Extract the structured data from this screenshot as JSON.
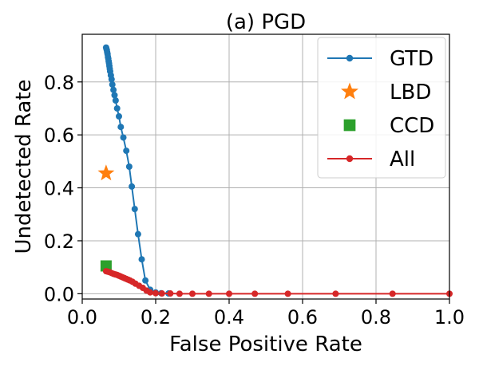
{
  "chart_data": {
    "type": "line",
    "title": "(a) PGD",
    "xlabel": "False Positive Rate",
    "ylabel": "Undetected Rate",
    "xlim": [
      0.0,
      1.0
    ],
    "ylim": [
      -0.02,
      0.98
    ],
    "xticks": [
      0.0,
      0.2,
      0.4,
      0.6,
      0.8,
      1.0
    ],
    "xtick_labels": [
      "0.0",
      "0.2",
      "0.4",
      "0.6",
      "0.8",
      "1.0"
    ],
    "yticks": [
      0.0,
      0.2,
      0.4,
      0.6,
      0.8
    ],
    "ytick_labels": [
      "0.0",
      "0.2",
      "0.4",
      "0.6",
      "0.8"
    ],
    "grid": true,
    "legend_position": "top-right",
    "series": [
      {
        "name": "GTD",
        "color": "#1f77b4",
        "marker": "circle",
        "line": true,
        "x": [
          0.065,
          0.066,
          0.067,
          0.068,
          0.069,
          0.07,
          0.071,
          0.072,
          0.073,
          0.074,
          0.075,
          0.076,
          0.078,
          0.08,
          0.082,
          0.085,
          0.088,
          0.091,
          0.095,
          0.1,
          0.105,
          0.112,
          0.12,
          0.128,
          0.135,
          0.143,
          0.152,
          0.162,
          0.172,
          0.185,
          0.2,
          0.215,
          0.235
        ],
        "y": [
          0.93,
          0.925,
          0.92,
          0.912,
          0.905,
          0.895,
          0.888,
          0.878,
          0.87,
          0.86,
          0.85,
          0.84,
          0.825,
          0.81,
          0.79,
          0.77,
          0.75,
          0.73,
          0.7,
          0.67,
          0.63,
          0.59,
          0.54,
          0.48,
          0.405,
          0.32,
          0.225,
          0.13,
          0.05,
          0.015,
          0.005,
          0.002,
          0.001
        ]
      },
      {
        "name": "LBD",
        "color": "#ff7f0e",
        "marker": "star",
        "line": false,
        "x": [
          0.065
        ],
        "y": [
          0.455
        ]
      },
      {
        "name": "CCD",
        "color": "#2ca02c",
        "marker": "square",
        "line": false,
        "x": [
          0.065
        ],
        "y": [
          0.105
        ]
      },
      {
        "name": "All",
        "color": "#d62728",
        "marker": "circle",
        "line": true,
        "x": [
          0.065,
          0.07,
          0.075,
          0.08,
          0.085,
          0.09,
          0.095,
          0.1,
          0.105,
          0.11,
          0.115,
          0.12,
          0.125,
          0.13,
          0.137,
          0.145,
          0.155,
          0.165,
          0.175,
          0.185,
          0.2,
          0.217,
          0.24,
          0.265,
          0.3,
          0.345,
          0.4,
          0.47,
          0.56,
          0.69,
          0.845,
          1.0
        ],
        "y": [
          0.085,
          0.083,
          0.081,
          0.078,
          0.075,
          0.073,
          0.071,
          0.068,
          0.065,
          0.062,
          0.059,
          0.056,
          0.053,
          0.05,
          0.045,
          0.038,
          0.03,
          0.022,
          0.012,
          0.005,
          0.002,
          0.001,
          0.001,
          0.0,
          0.0,
          0.0,
          0.0,
          0.0,
          0.0,
          0.0,
          0.0,
          0.0
        ]
      }
    ]
  }
}
